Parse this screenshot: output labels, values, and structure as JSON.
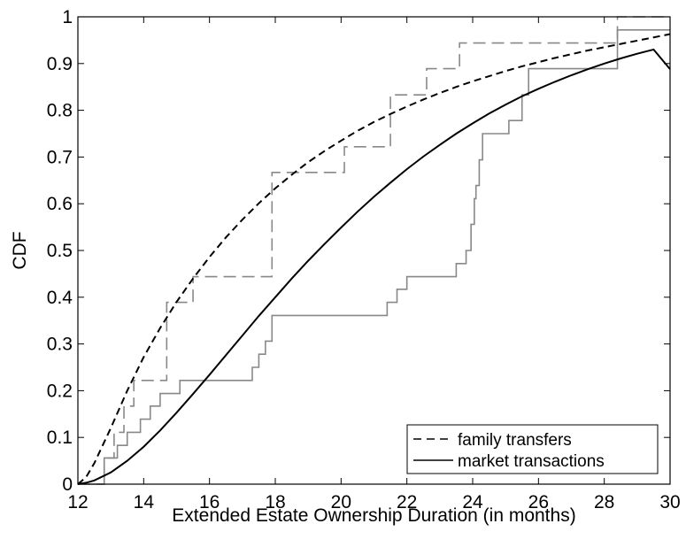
{
  "chart_data": {
    "type": "line",
    "title": "",
    "xlabel": "Extended Estate Ownership Duration (in months)",
    "ylabel": "CDF",
    "xlim": [
      12,
      30
    ],
    "ylim": [
      0,
      1
    ],
    "xticks": [
      12,
      14,
      16,
      18,
      20,
      22,
      24,
      26,
      28,
      30
    ],
    "yticks": [
      0,
      0.1,
      0.2,
      0.3,
      0.4,
      0.5,
      0.6,
      0.7,
      0.8,
      0.9,
      1
    ],
    "ytick_labels": [
      "0",
      "0.1",
      "0.2",
      "0.3",
      "0.4",
      "0.5",
      "0.6",
      "0.7",
      "0.8",
      "0.9",
      "1"
    ],
    "grid": false,
    "legend_position": "bottom-right",
    "legend": [
      {
        "label": "family transfers",
        "style": "dashed",
        "color": "#000000"
      },
      {
        "label": "market transactions",
        "style": "solid",
        "color": "#000000"
      }
    ],
    "series": [
      {
        "name": "family transfers",
        "kind": "fitted",
        "style": "dashed",
        "color": "#000000",
        "x": [
          12,
          12.25,
          12.5,
          13,
          13.5,
          14,
          14.5,
          15,
          15.5,
          16,
          16.5,
          17,
          17.5,
          18,
          18.5,
          19,
          19.5,
          20,
          20.5,
          21,
          21.5,
          22,
          22.5,
          23,
          23.5,
          24,
          24.5,
          25,
          25.5,
          26,
          26.5,
          27,
          27.5,
          28,
          28.5,
          29,
          29.5,
          30
        ],
        "y": [
          0,
          0.015,
          0.045,
          0.12,
          0.2,
          0.272,
          0.334,
          0.39,
          0.44,
          0.486,
          0.528,
          0.566,
          0.601,
          0.633,
          0.662,
          0.689,
          0.713,
          0.735,
          0.756,
          0.775,
          0.792,
          0.808,
          0.823,
          0.837,
          0.85,
          0.862,
          0.873,
          0.884,
          0.894,
          0.903,
          0.912,
          0.92,
          0.928,
          0.935,
          0.942,
          0.949,
          0.956,
          0.963
        ]
      },
      {
        "name": "market transactions",
        "kind": "fitted",
        "style": "solid",
        "color": "#000000",
        "x": [
          12,
          12.25,
          12.5,
          13,
          13.5,
          14,
          14.5,
          15,
          15.5,
          16,
          16.5,
          17,
          17.5,
          18,
          18.5,
          19,
          19.5,
          20,
          20.5,
          21,
          21.5,
          22,
          22.5,
          23,
          23.5,
          24,
          24.5,
          25,
          25.5,
          26,
          26.5,
          27,
          27.5,
          28,
          28.5,
          29,
          29.5,
          30
        ],
        "y": [
          0,
          0.003,
          0.008,
          0.025,
          0.05,
          0.08,
          0.115,
          0.153,
          0.193,
          0.234,
          0.276,
          0.318,
          0.36,
          0.4,
          0.44,
          0.478,
          0.514,
          0.549,
          0.583,
          0.615,
          0.645,
          0.674,
          0.701,
          0.726,
          0.75,
          0.772,
          0.793,
          0.812,
          0.83,
          0.846,
          0.861,
          0.875,
          0.888,
          0.9,
          0.911,
          0.921,
          0.93,
          0.888
        ]
      },
      {
        "name": "family transfers (empirical)",
        "kind": "empirical-step",
        "style": "dashed",
        "color": "#888888",
        "x": [
          12.8,
          13.1,
          13.4,
          13.7,
          14.7,
          15.5,
          17.9,
          20.1,
          21.5,
          22.6,
          23.6,
          28.4,
          30
        ],
        "y": [
          0.056,
          0.111,
          0.167,
          0.222,
          0.389,
          0.444,
          0.667,
          0.722,
          0.833,
          0.889,
          0.944,
          1.0,
          1.0
        ]
      },
      {
        "name": "market transactions (empirical)",
        "kind": "empirical-step",
        "style": "solid",
        "color": "#888888",
        "x": [
          12.8,
          13.2,
          13.5,
          13.9,
          14.2,
          14.5,
          15.1,
          17.3,
          17.5,
          17.7,
          17.9,
          21.4,
          21.7,
          22.0,
          23.5,
          23.8,
          23.95,
          24.05,
          24.1,
          24.2,
          24.3,
          25.1,
          25.5,
          25.7,
          28.4,
          30
        ],
        "y": [
          0.056,
          0.083,
          0.111,
          0.139,
          0.167,
          0.194,
          0.222,
          0.25,
          0.278,
          0.306,
          0.361,
          0.389,
          0.417,
          0.444,
          0.472,
          0.5,
          0.556,
          0.611,
          0.639,
          0.694,
          0.75,
          0.778,
          0.833,
          0.889,
          0.972,
          0.972
        ]
      }
    ]
  }
}
